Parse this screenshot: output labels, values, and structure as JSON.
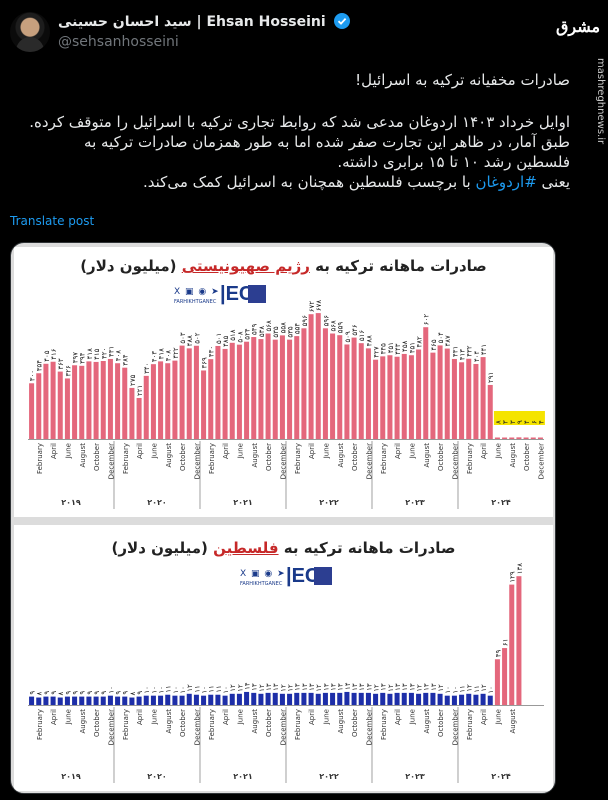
{
  "author": {
    "name_fa": "سید احسان حسینی",
    "name_en": "| Ehsan Hosseini",
    "handle": "@sehsanhosseini"
  },
  "site": {
    "logo_text": "مشرق",
    "side_label": "mashreghnews.ir"
  },
  "tweet": {
    "line1": "صادرات مخفیانه ترکیه به اسرائیل!",
    "line2": "اوایل خرداد ۱۴۰۳ اردوغان مدعی شد که روابط  تجاری ترکیه با اسرائیل را متوقف کرده.",
    "line3": "طبق آمار، در ظاهر این تجارت صفر شده اما به طور همزمان صادرات ترکیه به",
    "line4": "فلسطین رشد ۱۰ تا ۱۵ برابری داشته.",
    "line5_pre": "یعنی ",
    "hashtag": "#اردوغان",
    "line5_post": " با برچسب فلسطین همچنان به اسرائیل کمک می‌کند."
  },
  "translate_label": "Translate post",
  "brand": {
    "icons": "X ▣ ◉ ➤",
    "sub": "FARHIKHTGANEC",
    "ec": "|EC"
  },
  "chart_data": [
    {
      "type": "bar",
      "title_pre": "صادرات ماهانه ترکیه به",
      "title_highlight": "رژیم صهیونیستی",
      "title_post": "(میلیون دلار)",
      "bar_color": "#e4677c",
      "highlight_color": "#f5e400",
      "ylim": [
        0,
        700
      ],
      "month_labels": [
        "February",
        "April",
        "June",
        "August",
        "October",
        "December"
      ],
      "years": [
        "۲۰۱۹",
        "۲۰۲۰",
        "۲۰۲۱",
        "۲۰۲۲",
        "۲۰۲۳",
        "۲۰۲۴"
      ],
      "values": [
        300,
        354,
        405,
        416,
        363,
        326,
        397,
        394,
        418,
        415,
        420,
        431,
        408,
        384,
        275,
        221,
        340,
        403,
        418,
        408,
        422,
        503,
        488,
        502,
        369,
        430,
        501,
        485,
        518,
        508,
        524,
        549,
        538,
        568,
        535,
        558,
        535,
        554,
        596,
        672,
        678,
        596,
        568,
        559,
        509,
        546,
        516,
        488,
        427,
        445,
        451,
        443,
        458,
        451,
        482,
        602,
        465,
        504,
        487,
        431,
        413,
        432,
        404,
        441,
        291,
        8,
        3,
        3,
        9,
        4,
        6,
        4
      ],
      "highlight_from": 65
    },
    {
      "type": "bar",
      "title_pre": "صادرات ماهانه ترکیه به",
      "title_highlight": "فلسطین",
      "title_post": "(میلیون دلار)",
      "bar_color": "#1d2ea8",
      "highlight_color": "#e4677c",
      "ylim": [
        0,
        150
      ],
      "month_labels": [
        "February",
        "April",
        "June",
        "August",
        "October",
        "December"
      ],
      "years": [
        "۲۰۱۹",
        "۲۰۲۰",
        "۲۰۲۱",
        "۲۰۲۲",
        "۲۰۲۳",
        "۲۰۲۴"
      ],
      "values": [
        9,
        8,
        9,
        9,
        8,
        9,
        9,
        9,
        9,
        9,
        9,
        10,
        9,
        9,
        8,
        9,
        10,
        10,
        10,
        11,
        10,
        10,
        12,
        11,
        10,
        11,
        11,
        10,
        12,
        12,
        14,
        13,
        12,
        13,
        13,
        12,
        12,
        13,
        13,
        13,
        12,
        13,
        13,
        13,
        14,
        13,
        13,
        13,
        12,
        13,
        12,
        13,
        13,
        13,
        12,
        13,
        13,
        12,
        10,
        10,
        11,
        12,
        11,
        12,
        10,
        49,
        61,
        129,
        138
      ],
      "value_labels": {
        "65": "۴۹",
        "66": "۶۱",
        "67": "۱۲۹",
        "68": "۱۳۸"
      },
      "highlight_from": 65
    }
  ]
}
